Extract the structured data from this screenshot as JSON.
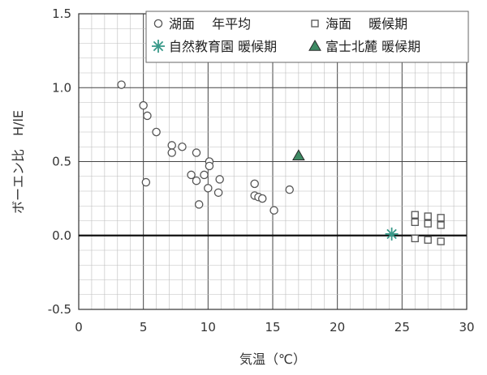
{
  "chart_data": {
    "type": "scatter",
    "xlabel": "気温（℃）",
    "ylabel": "ボーエン比　H/lE",
    "xlim": [
      0,
      30
    ],
    "ylim": [
      -0.5,
      1.5
    ],
    "x_ticks": [
      "0",
      "5",
      "10",
      "15",
      "20",
      "25",
      "30"
    ],
    "y_ticks": [
      "1.5",
      "1.0",
      "0.5",
      "0.0",
      "-0.5"
    ],
    "grid": true,
    "legend_position": "top-right",
    "series": [
      {
        "name": "湖面　 年平均",
        "marker": "circle",
        "color": "#555555",
        "points": [
          [
            3.3,
            1.02
          ],
          [
            5.0,
            0.88
          ],
          [
            5.3,
            0.81
          ],
          [
            6.0,
            0.7
          ],
          [
            7.2,
            0.61
          ],
          [
            7.2,
            0.56
          ],
          [
            8.0,
            0.6
          ],
          [
            9.1,
            0.56
          ],
          [
            10.1,
            0.5
          ],
          [
            10.1,
            0.47
          ],
          [
            8.7,
            0.41
          ],
          [
            9.1,
            0.37
          ],
          [
            9.7,
            0.41
          ],
          [
            10.9,
            0.38
          ],
          [
            5.2,
            0.36
          ],
          [
            10.0,
            0.32
          ],
          [
            10.8,
            0.29
          ],
          [
            9.3,
            0.21
          ],
          [
            13.6,
            0.35
          ],
          [
            13.6,
            0.27
          ],
          [
            13.9,
            0.26
          ],
          [
            14.2,
            0.25
          ],
          [
            16.3,
            0.31
          ],
          [
            15.1,
            0.17
          ]
        ]
      },
      {
        "name": "海面　 暖候期",
        "marker": "square",
        "color": "#555555",
        "points": [
          [
            26.0,
            0.14
          ],
          [
            26.0,
            0.09
          ],
          [
            26.0,
            -0.02
          ],
          [
            27.0,
            0.13
          ],
          [
            27.0,
            0.08
          ],
          [
            27.0,
            -0.03
          ],
          [
            28.0,
            0.12
          ],
          [
            28.0,
            0.07
          ],
          [
            28.0,
            -0.04
          ]
        ]
      },
      {
        "name": "自然教育園 暖候期",
        "marker": "asterisk",
        "color": "#3a9a8a",
        "points": [
          [
            24.2,
            0.01
          ]
        ]
      },
      {
        "name": "富士北麓 暖候期",
        "marker": "triangle",
        "color": "#3e8a64",
        "points": [
          [
            17.0,
            0.54
          ]
        ]
      }
    ]
  }
}
